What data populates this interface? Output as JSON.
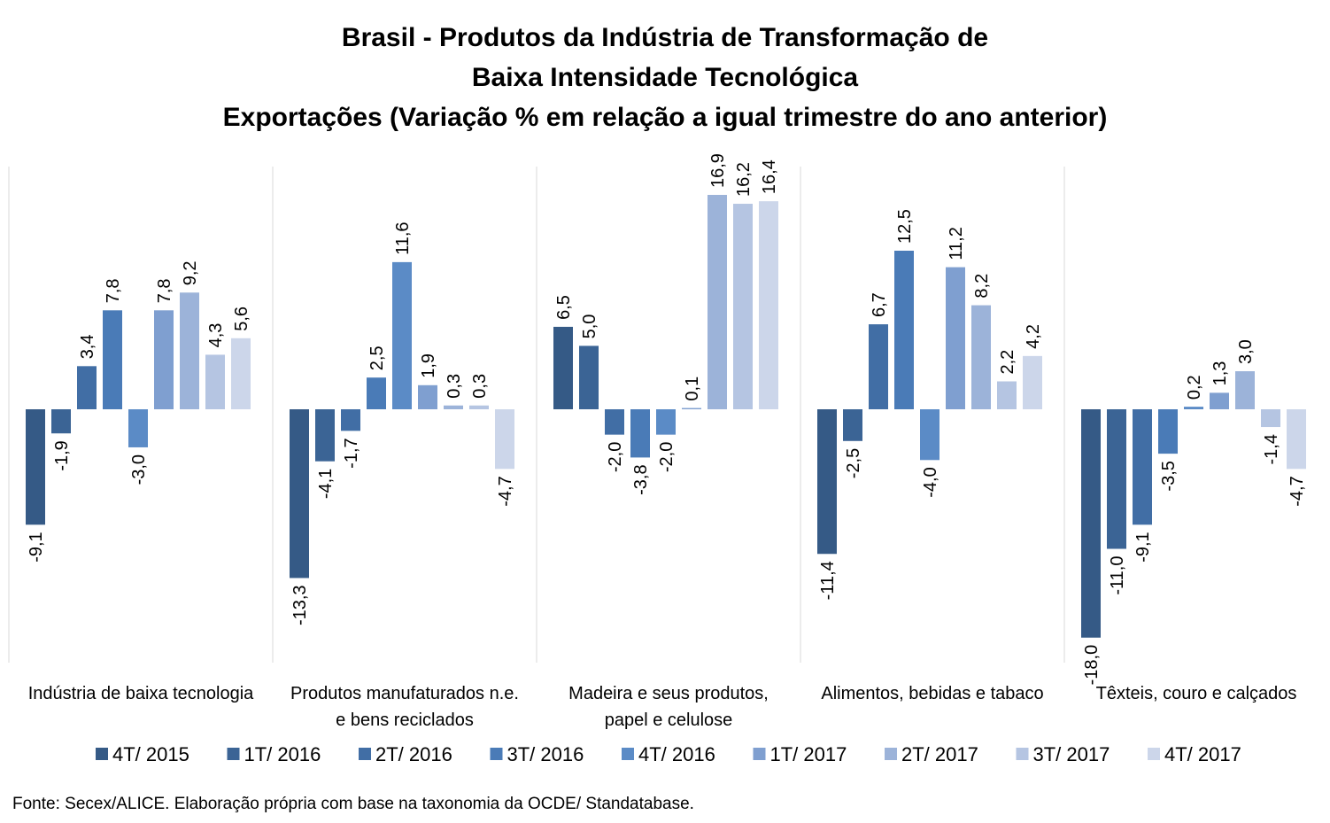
{
  "chart_data": {
    "type": "bar",
    "title": [
      "Brasil - Produtos da Indústria de Transformação de",
      "Baixa Intensidade Tecnológica",
      "Exportações (Variação % em relação a igual trimestre do ano anterior)"
    ],
    "categories": [
      [
        "Indústria de baixa tecnologia"
      ],
      [
        "Produtos manufaturados n.e.",
        "e bens reciclados"
      ],
      [
        "Madeira e seus produtos,",
        "papel e celulose"
      ],
      [
        "Alimentos, bebidas e tabaco"
      ],
      [
        "Têxteis, couro e calçados"
      ]
    ],
    "series": [
      {
        "name": "4T/ 2015",
        "color": "#355a86",
        "values": [
          -9.1,
          -13.3,
          6.5,
          -11.4,
          -18.0
        ],
        "labels": [
          "-9,1",
          "-13,3",
          "6,5",
          "-11,4",
          "-18,0"
        ]
      },
      {
        "name": "1T/ 2016",
        "color": "#3b6495",
        "values": [
          -1.9,
          -4.1,
          5.0,
          -2.5,
          -11.0
        ],
        "labels": [
          "-1,9",
          "-4,1",
          "5,0",
          "-2,5",
          "-11,0"
        ]
      },
      {
        "name": "2T/ 2016",
        "color": "#416ea5",
        "values": [
          3.4,
          -1.7,
          -2.0,
          6.7,
          -9.1
        ],
        "labels": [
          "3,4",
          "-1,7",
          "-2,0",
          "6,7",
          "-9,1"
        ]
      },
      {
        "name": "3T/ 2016",
        "color": "#4a7bb7",
        "values": [
          7.8,
          2.5,
          -3.8,
          12.5,
          -3.5
        ],
        "labels": [
          "7,8",
          "2,5",
          "-3,8",
          "12,5",
          "-3,5"
        ]
      },
      {
        "name": "4T/ 2016",
        "color": "#5b8bc6",
        "values": [
          -3.0,
          11.6,
          -2.0,
          -4.0,
          0.2
        ],
        "labels": [
          "-3,0",
          "11,6",
          "-2,0",
          "-4,0",
          "0,2"
        ]
      },
      {
        "name": "1T/ 2017",
        "color": "#7f9fd0",
        "values": [
          7.8,
          1.9,
          0.1,
          11.2,
          1.3
        ],
        "labels": [
          "7,8",
          "1,9",
          "0,1",
          "11,2",
          "1,3"
        ]
      },
      {
        "name": "2T/ 2017",
        "color": "#9cb3d9",
        "values": [
          9.2,
          0.3,
          16.9,
          8.2,
          3.0
        ],
        "labels": [
          "9,2",
          "0,3",
          "16,9",
          "8,2",
          "3,0"
        ]
      },
      {
        "name": "3T/ 2017",
        "color": "#b5c5e2",
        "values": [
          4.3,
          0.3,
          16.2,
          2.2,
          -1.4
        ],
        "labels": [
          "4,3",
          "0,3",
          "16,2",
          "2,2",
          "-1,4"
        ]
      },
      {
        "name": "4T/ 2017",
        "color": "#ccd6ea",
        "values": [
          5.6,
          -4.7,
          16.4,
          4.2,
          -4.7
        ],
        "labels": [
          "5,6",
          "-4,7",
          "16,4",
          "4,2",
          "-4,7"
        ]
      }
    ],
    "xlabel": "",
    "ylabel": "",
    "ylim": [
      -18.0,
      16.9
    ],
    "grid": false,
    "legend_position": "bottom",
    "separator_color": "#d9d9d9",
    "source": "Fonte: Secex/ALICE. Elaboração própria com base na taxonomia da OCDE/ Standatabase."
  }
}
